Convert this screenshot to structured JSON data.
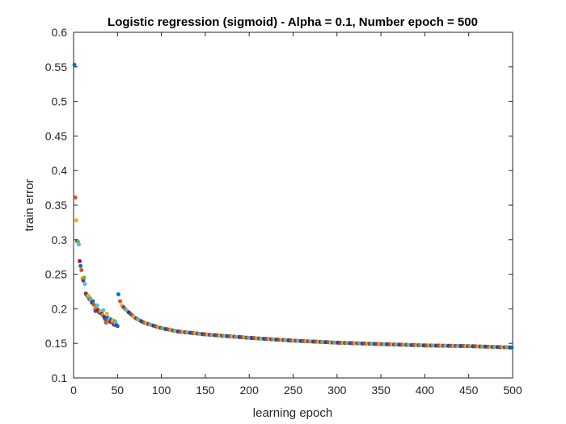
{
  "chart_data": {
    "type": "scatter",
    "title": "Logistic regression (sigmoid) - Alpha = 0.1, Number epoch = 500",
    "xlabel": "learning epoch",
    "ylabel": "train error",
    "xlim": [
      0,
      500
    ],
    "ylim": [
      0.1,
      0.6
    ],
    "xticks": [
      "0",
      "50",
      "100",
      "150",
      "200",
      "250",
      "300",
      "350",
      "400",
      "450",
      "500"
    ],
    "yticks": [
      "0.1",
      "0.15",
      "0.2",
      "0.25",
      "0.3",
      "0.35",
      "0.4",
      "0.45",
      "0.5",
      "0.55",
      "0.6"
    ],
    "grid": false,
    "legend": "none",
    "marker_colors": [
      "#0072BD",
      "#D95319",
      "#EDB120",
      "#7E2F8E",
      "#77AC30",
      "#4DBEEE",
      "#A2142F"
    ],
    "phase1_points": [
      [
        1,
        0.553
      ],
      [
        2,
        0.361
      ],
      [
        3,
        0.328
      ],
      [
        4,
        0.298
      ],
      [
        5,
        0.297
      ],
      [
        6,
        0.293
      ],
      [
        7,
        0.269
      ],
      [
        8,
        0.262
      ],
      [
        9,
        0.256
      ],
      [
        10,
        0.244
      ],
      [
        11,
        0.241
      ],
      [
        12,
        0.245
      ],
      [
        13,
        0.236
      ],
      [
        14,
        0.222
      ],
      [
        15,
        0.22
      ],
      [
        16,
        0.218
      ],
      [
        17,
        0.219
      ],
      [
        18,
        0.214
      ],
      [
        19,
        0.215
      ],
      [
        20,
        0.212
      ],
      [
        21,
        0.209
      ],
      [
        22,
        0.211
      ],
      [
        23,
        0.206
      ],
      [
        24,
        0.2
      ],
      [
        25,
        0.197
      ],
      [
        26,
        0.202
      ],
      [
        27,
        0.205
      ],
      [
        28,
        0.198
      ],
      [
        29,
        0.195
      ],
      [
        30,
        0.194
      ],
      [
        31,
        0.197
      ],
      [
        32,
        0.193
      ],
      [
        33,
        0.191
      ],
      [
        34,
        0.198
      ],
      [
        35,
        0.188
      ],
      [
        36,
        0.185
      ],
      [
        37,
        0.18
      ],
      [
        38,
        0.193
      ],
      [
        39,
        0.187
      ],
      [
        40,
        0.183
      ],
      [
        41,
        0.186
      ],
      [
        42,
        0.181
      ],
      [
        43,
        0.184
      ],
      [
        44,
        0.18
      ],
      [
        45,
        0.183
      ],
      [
        46,
        0.177
      ],
      [
        47,
        0.182
      ],
      [
        48,
        0.179
      ],
      [
        49,
        0.176
      ],
      [
        50,
        0.175
      ]
    ],
    "phase2_points": [
      [
        51,
        0.221
      ],
      [
        53,
        0.211
      ],
      [
        55,
        0.205
      ],
      [
        60,
        0.198
      ],
      [
        70,
        0.187
      ],
      [
        80,
        0.18
      ],
      [
        90,
        0.176
      ],
      [
        100,
        0.172
      ],
      [
        120,
        0.167
      ],
      [
        150,
        0.163
      ],
      [
        200,
        0.158
      ],
      [
        250,
        0.154
      ],
      [
        300,
        0.151
      ],
      [
        350,
        0.149
      ],
      [
        400,
        0.147
      ],
      [
        450,
        0.146
      ],
      [
        500,
        0.144
      ]
    ]
  }
}
